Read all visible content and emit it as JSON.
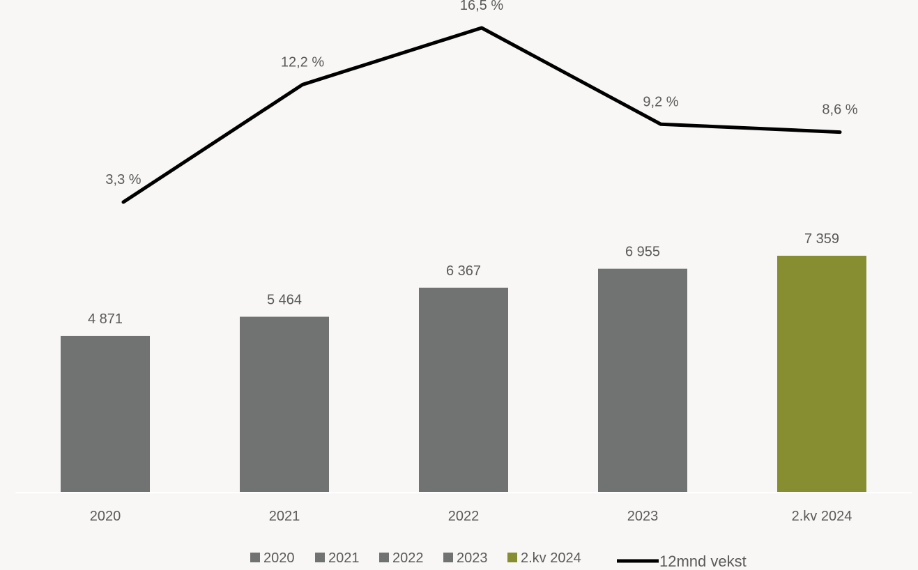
{
  "chart_data": {
    "type": "bar",
    "categories": [
      "2020",
      "2021",
      "2022",
      "2023",
      "2.kv 2024"
    ],
    "series": [
      {
        "name": "",
        "type": "bar",
        "values": [
          4871,
          5464,
          6367,
          6955,
          7359
        ],
        "labels": [
          "4 871",
          "5 464",
          "6 367",
          "6 955",
          "7 359"
        ],
        "colors": [
          "#717372",
          "#717372",
          "#717372",
          "#717372",
          "#878d31"
        ]
      },
      {
        "name": "12mnd vekst",
        "type": "line",
        "values": [
          3.3,
          12.2,
          16.5,
          9.2,
          8.6
        ],
        "labels": [
          "3,3 %",
          "12,2 %",
          "16,5 %",
          "9,2 %",
          "8,6 %"
        ],
        "color": "#000000"
      }
    ],
    "legend": {
      "position": "bottom",
      "items": [
        {
          "label": "2020",
          "color": "#717372",
          "kind": "square"
        },
        {
          "label": "2021",
          "color": "#717372",
          "kind": "square"
        },
        {
          "label": "2022",
          "color": "#717372",
          "kind": "square"
        },
        {
          "label": "2023",
          "color": "#717372",
          "kind": "square"
        },
        {
          "label": "2.kv 2024",
          "color": "#878d31",
          "kind": "square"
        },
        {
          "label": "12mnd vekst",
          "color": "#000000",
          "kind": "line"
        }
      ]
    },
    "title": "",
    "xlabel": "",
    "ylabel": "",
    "ylim": [
      0,
      7359
    ],
    "line_ylim": [
      3.3,
      16.5
    ],
    "grid": false
  }
}
